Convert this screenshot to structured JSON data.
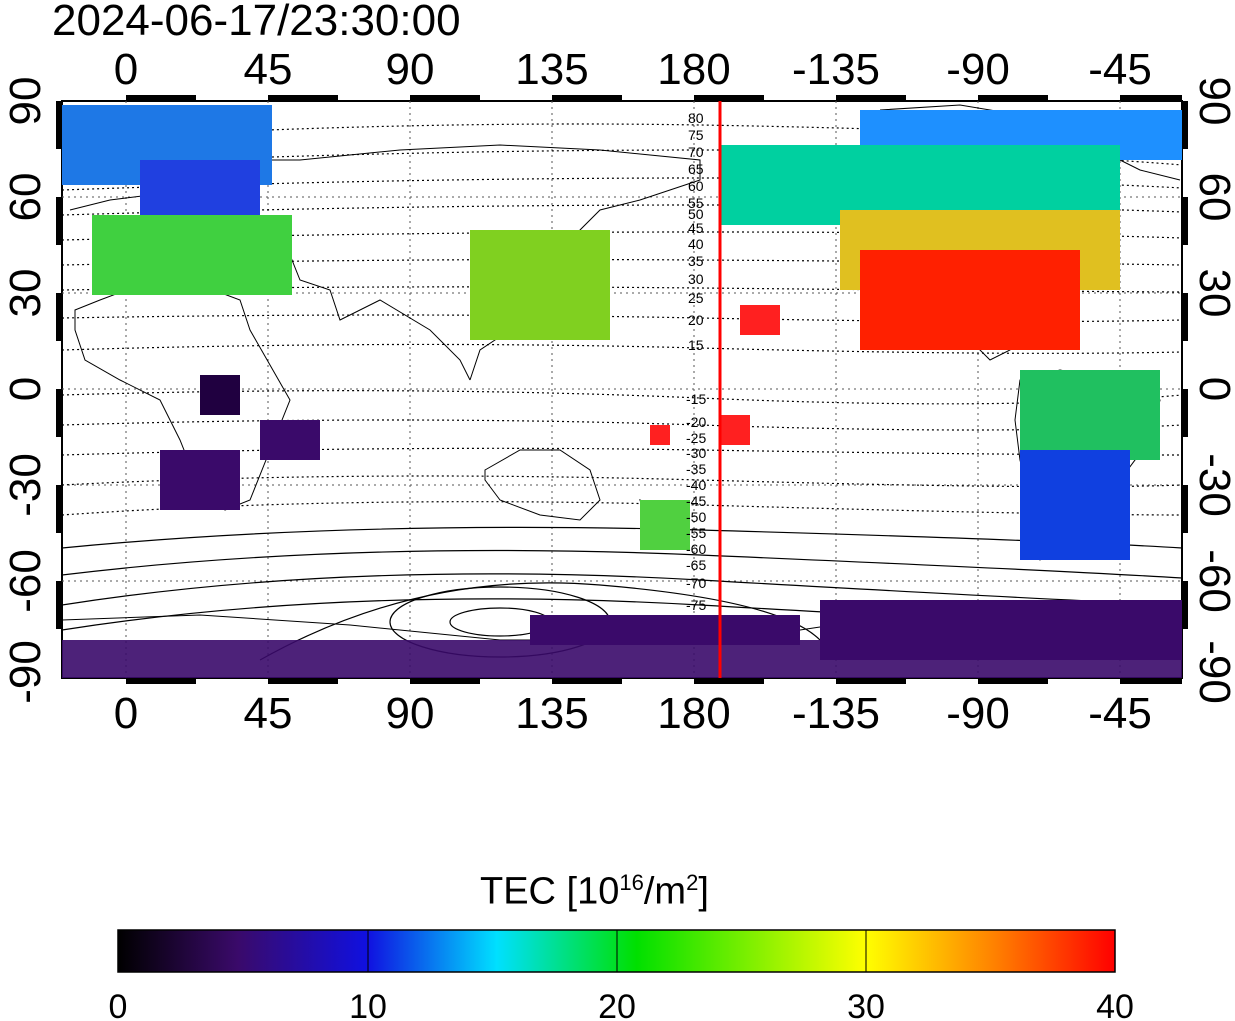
{
  "title": "2024-06-17/23:30:00",
  "axes": {
    "lon_ticks": [
      "0",
      "45",
      "90",
      "135",
      "180",
      "-135",
      "-90",
      "-45"
    ],
    "lat_ticks": [
      "90",
      "60",
      "30",
      "0",
      "-30",
      "-60",
      "-90"
    ]
  },
  "terminator_labels_north": [
    "80",
    "75",
    "70",
    "65",
    "60",
    "55",
    "50",
    "45",
    "40",
    "35",
    "30",
    "25",
    "20",
    "15"
  ],
  "terminator_labels_south": [
    "-15",
    "-20",
    "-25",
    "-30",
    "-35",
    "-40",
    "-45",
    "-50",
    "-55",
    "-60",
    "-65",
    "-70",
    "-75"
  ],
  "colorbar": {
    "label_prefix": "TEC  [10",
    "label_exp": "16",
    "label_mid": "/m",
    "label_exp2": "2",
    "label_suffix": "]",
    "ticks": [
      "0",
      "10",
      "20",
      "30",
      "40"
    ],
    "range": [
      0,
      40
    ]
  },
  "colors": {
    "marker_line": "#ff0000",
    "colormap": [
      "#000000",
      "#3a0a6a",
      "#1010e0",
      "#00e0ff",
      "#00e000",
      "#ffff00",
      "#ff8000",
      "#ff0000"
    ]
  }
}
